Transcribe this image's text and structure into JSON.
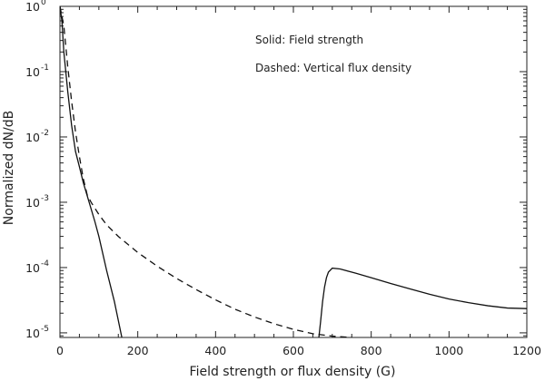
{
  "chart_data": {
    "type": "line",
    "title": "",
    "xlabel": "Field strength or flux density (G)",
    "ylabel": "Normalized dN/dB",
    "xlim": [
      0,
      1200
    ],
    "ylim": [
      8.5e-06,
      1
    ],
    "yscale": "log",
    "grid": false,
    "x_ticks": [
      0,
      200,
      400,
      600,
      800,
      1000,
      1200
    ],
    "y_tick_labels": [
      {
        "value": 1,
        "base": "10",
        "exp": "0"
      },
      {
        "value": 0.1,
        "base": "10",
        "exp": "-1"
      },
      {
        "value": 0.01,
        "base": "10",
        "exp": "-2"
      },
      {
        "value": 0.001,
        "base": "10",
        "exp": "-3"
      },
      {
        "value": 0.0001,
        "base": "10",
        "exp": "-4"
      },
      {
        "value": 1e-05,
        "base": "10",
        "exp": "-5"
      }
    ],
    "annotations": [
      {
        "text": "Solid: Field strength"
      },
      {
        "text": "Dashed: Vertical flux density"
      }
    ],
    "series": [
      {
        "style": "solid",
        "segments": [
          {
            "x": [
              0,
              5,
              10,
              20,
              30,
              40,
              50,
              60,
              75,
              90,
              100,
              120,
              140,
              160
            ],
            "y": [
              1,
              0.6,
              0.2,
              0.05,
              0.015,
              0.006,
              0.0035,
              0.002,
              0.001,
              0.0005,
              0.0003,
              9e-05,
              3e-05,
              8e-06
            ]
          },
          {
            "x": [
              665,
              670,
              675,
              680,
              685,
              690,
              700,
              720,
              760,
              800,
              850,
              900,
              950,
              1000,
              1050,
              1100,
              1150,
              1200
            ],
            "y": [
              8e-06,
              1.5e-05,
              3e-05,
              5e-05,
              7e-05,
              8.5e-05,
              9.8e-05,
              9.5e-05,
              8.2e-05,
              7e-05,
              5.7e-05,
              4.7e-05,
              3.9e-05,
              3.3e-05,
              2.9e-05,
              2.6e-05,
              2.4e-05,
              2.35e-05
            ]
          }
        ]
      },
      {
        "style": "dashed",
        "segments": [
          {
            "x": [
              0,
              10,
              20,
              30,
              40,
              50,
              60,
              70,
              80,
              100,
              120,
              150,
              200,
              250,
              300,
              350,
              400,
              450,
              500,
              550,
              600,
              650,
              700,
              750
            ],
            "y": [
              1,
              0.5,
              0.12,
              0.035,
              0.012,
              0.005,
              0.0023,
              0.0013,
              0.001,
              0.00065,
              0.00045,
              0.0003,
              0.00017,
              0.000105,
              6.8e-05,
              4.6e-05,
              3.2e-05,
              2.3e-05,
              1.75e-05,
              1.38e-05,
              1.13e-05,
              9.7e-06,
              8.9e-06,
              8.5e-06
            ]
          }
        ]
      }
    ]
  }
}
